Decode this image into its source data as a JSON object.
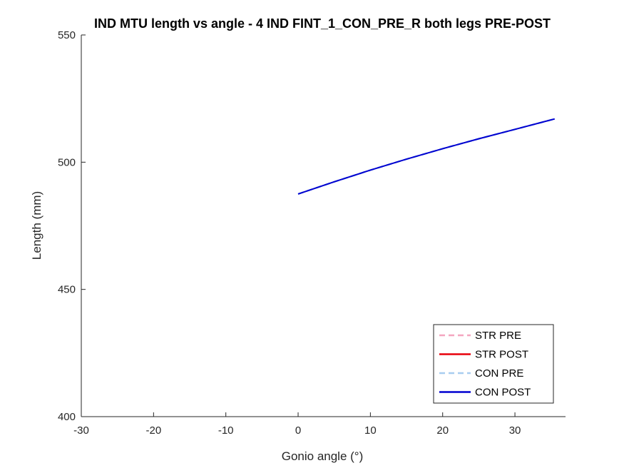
{
  "chart_data": {
    "type": "line",
    "title": "IND MTU length vs angle - 4 IND FINT_1_CON_PRE_R both legs PRE-POST",
    "xlabel": "Gonio angle (°)",
    "ylabel": "Length (mm)",
    "xlim": [
      -30,
      37
    ],
    "ylim": [
      400,
      550
    ],
    "xticks": [
      -30,
      -20,
      -10,
      0,
      10,
      20,
      30
    ],
    "yticks": [
      400,
      450,
      500,
      550
    ],
    "xtick_labels": [
      "-30",
      "-20",
      "-10",
      "0",
      "10",
      "20",
      "30"
    ],
    "ytick_labels": [
      "400",
      "450",
      "500",
      "550"
    ],
    "grid": false,
    "legend_position": "bottom-right",
    "series": [
      {
        "name": "STR PRE",
        "color": "#f4a6c0",
        "dashed": true,
        "width": 2.5,
        "x": [],
        "y": []
      },
      {
        "name": "STR POST",
        "color": "#e8000b",
        "dashed": false,
        "width": 2.5,
        "x": [],
        "y": []
      },
      {
        "name": "CON PRE",
        "color": "#a8cdf0",
        "dashed": true,
        "width": 2.5,
        "x": [
          0,
          5,
          10,
          15,
          20,
          25,
          30,
          35.5
        ],
        "y": [
          487.5,
          492.3,
          496.9,
          501.2,
          505.3,
          509.2,
          512.9,
          517.0
        ]
      },
      {
        "name": "CON POST",
        "color": "#0000d0",
        "dashed": false,
        "width": 2,
        "x": [
          0,
          5,
          10,
          15,
          20,
          25,
          30,
          35.5
        ],
        "y": [
          487.5,
          492.3,
          496.9,
          501.2,
          505.3,
          509.2,
          512.9,
          517.0
        ]
      }
    ]
  }
}
